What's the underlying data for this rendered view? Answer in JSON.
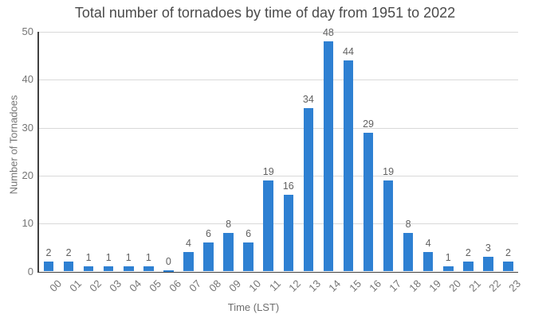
{
  "title": "Total number of tornadoes by time of day from 1951 to 2022",
  "colors": {
    "bar": "#2E80D2",
    "title_text": "#4a4a4a",
    "axis_text": "#757575",
    "data_label_text": "#616161",
    "axis_line": "#404040",
    "gridline": "#d9d9d9",
    "background": "#ffffff"
  },
  "chart_data": {
    "type": "bar",
    "title": "Total number of tornadoes by time of day from 1951 to 2022",
    "xlabel": "Time (LST)",
    "ylabel": "Number of Tornadoes",
    "categories": [
      "00",
      "01",
      "02",
      "03",
      "04",
      "05",
      "06",
      "07",
      "08",
      "09",
      "10",
      "11",
      "12",
      "13",
      "14",
      "15",
      "16",
      "17",
      "18",
      "19",
      "20",
      "21",
      "22",
      "23"
    ],
    "values": [
      2,
      2,
      1,
      1,
      1,
      1,
      0,
      4,
      6,
      8,
      6,
      19,
      16,
      34,
      48,
      44,
      29,
      19,
      8,
      4,
      1,
      2,
      3,
      2
    ],
    "ylim": [
      0,
      50
    ],
    "yticks": [
      0,
      10,
      20,
      30,
      40,
      50
    ],
    "grid": true,
    "legend": false,
    "data_labels": true
  }
}
